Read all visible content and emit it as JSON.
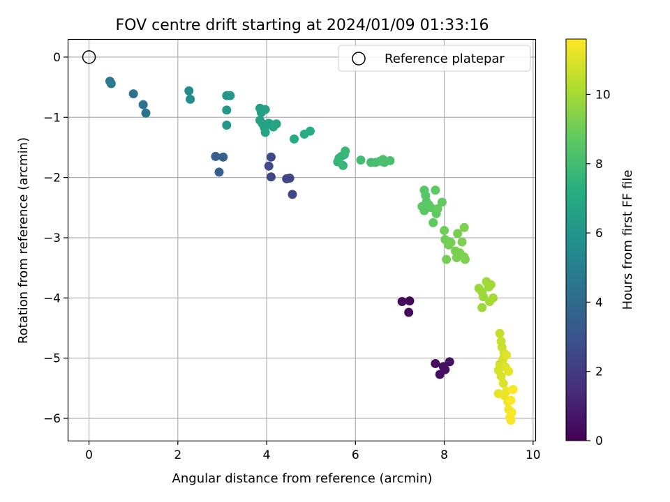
{
  "chart_data": {
    "type": "scatter",
    "title": "FOV centre drift starting at 2024/01/09 01:33:16",
    "xlabel": "Angular distance from reference (arcmin)",
    "ylabel": "Rotation from reference (arcmin)",
    "xlim": [
      -0.48,
      10.05
    ],
    "ylim": [
      -6.37,
      0.3
    ],
    "xticks": [
      "0",
      "2",
      "4",
      "6",
      "8",
      "10"
    ],
    "yticks": [
      "0",
      "−1",
      "−2",
      "−3",
      "−4",
      "−5",
      "−6"
    ],
    "grid": true,
    "legend": {
      "position": "top-right",
      "entries": [
        "Reference platepar"
      ]
    },
    "reference_point": {
      "x": 0,
      "y": 0,
      "label": "Reference platepar"
    },
    "colorbar": {
      "label": "Hours from first FF file",
      "min": 0,
      "max": 11.6,
      "ticks": [
        "0",
        "2",
        "4",
        "6",
        "8",
        "10"
      ],
      "colormap": "viridis"
    },
    "points": [
      {
        "x": 7.05,
        "y": -4.06,
        "h": 0.2
      },
      {
        "x": 7.22,
        "y": -4.05,
        "h": 0.25
      },
      {
        "x": 7.2,
        "y": -4.24,
        "h": 0.3
      },
      {
        "x": 7.8,
        "y": -5.09,
        "h": 0.35
      },
      {
        "x": 7.9,
        "y": -5.27,
        "h": 0.4
      },
      {
        "x": 7.98,
        "y": -5.14,
        "h": 0.45
      },
      {
        "x": 8.02,
        "y": -5.19,
        "h": 0.5
      },
      {
        "x": 8.12,
        "y": -5.06,
        "h": 0.55
      },
      {
        "x": 4.45,
        "y": -2.02,
        "h": 2.4
      },
      {
        "x": 4.52,
        "y": -2.01,
        "h": 2.45
      },
      {
        "x": 4.58,
        "y": -2.28,
        "h": 2.5
      },
      {
        "x": 4.1,
        "y": -1.99,
        "h": 2.55
      },
      {
        "x": 4.1,
        "y": -1.66,
        "h": 2.6
      },
      {
        "x": 4.05,
        "y": -1.81,
        "h": 2.7
      },
      {
        "x": 2.85,
        "y": -1.65,
        "h": 3.5
      },
      {
        "x": 3.02,
        "y": -1.66,
        "h": 3.55
      },
      {
        "x": 2.93,
        "y": -1.91,
        "h": 3.6
      },
      {
        "x": 1.0,
        "y": -0.61,
        "h": 4.3
      },
      {
        "x": 1.22,
        "y": -0.79,
        "h": 4.35
      },
      {
        "x": 1.28,
        "y": -0.93,
        "h": 4.4
      },
      {
        "x": 0.47,
        "y": -0.4,
        "h": 4.7
      },
      {
        "x": 0.5,
        "y": -0.44,
        "h": 4.75
      },
      {
        "x": 2.25,
        "y": -0.56,
        "h": 5.5
      },
      {
        "x": 2.28,
        "y": -0.7,
        "h": 5.55
      },
      {
        "x": 3.1,
        "y": -0.64,
        "h": 6.1
      },
      {
        "x": 3.18,
        "y": -0.64,
        "h": 6.12
      },
      {
        "x": 3.1,
        "y": -0.88,
        "h": 6.15
      },
      {
        "x": 3.1,
        "y": -1.13,
        "h": 6.2
      },
      {
        "x": 3.85,
        "y": -0.85,
        "h": 6.5
      },
      {
        "x": 3.88,
        "y": -0.92,
        "h": 6.52
      },
      {
        "x": 3.92,
        "y": -0.88,
        "h": 6.55
      },
      {
        "x": 3.97,
        "y": -0.87,
        "h": 6.58
      },
      {
        "x": 3.85,
        "y": -1.05,
        "h": 6.6
      },
      {
        "x": 3.9,
        "y": -1.1,
        "h": 6.62
      },
      {
        "x": 3.95,
        "y": -1.17,
        "h": 6.65
      },
      {
        "x": 3.97,
        "y": -1.25,
        "h": 6.68
      },
      {
        "x": 4.05,
        "y": -1.1,
        "h": 6.7
      },
      {
        "x": 4.1,
        "y": -1.12,
        "h": 6.72
      },
      {
        "x": 4.15,
        "y": -1.16,
        "h": 6.75
      },
      {
        "x": 4.22,
        "y": -1.11,
        "h": 6.78
      },
      {
        "x": 4.62,
        "y": -1.36,
        "h": 7.1
      },
      {
        "x": 4.85,
        "y": -1.28,
        "h": 7.15
      },
      {
        "x": 4.98,
        "y": -1.23,
        "h": 7.2
      },
      {
        "x": 5.6,
        "y": -1.74,
        "h": 7.6
      },
      {
        "x": 5.63,
        "y": -1.68,
        "h": 7.62
      },
      {
        "x": 5.68,
        "y": -1.65,
        "h": 7.65
      },
      {
        "x": 5.72,
        "y": -1.8,
        "h": 7.68
      },
      {
        "x": 5.75,
        "y": -1.62,
        "h": 7.7
      },
      {
        "x": 5.77,
        "y": -1.56,
        "h": 7.72
      },
      {
        "x": 6.12,
        "y": -1.71,
        "h": 8.0
      },
      {
        "x": 6.35,
        "y": -1.75,
        "h": 8.05
      },
      {
        "x": 6.45,
        "y": -1.75,
        "h": 8.1
      },
      {
        "x": 6.55,
        "y": -1.73,
        "h": 8.12
      },
      {
        "x": 6.62,
        "y": -1.7,
        "h": 8.15
      },
      {
        "x": 6.65,
        "y": -1.75,
        "h": 8.18
      },
      {
        "x": 6.78,
        "y": -1.72,
        "h": 8.2
      },
      {
        "x": 7.55,
        "y": -2.21,
        "h": 8.5
      },
      {
        "x": 7.58,
        "y": -2.3,
        "h": 8.52
      },
      {
        "x": 7.6,
        "y": -2.4,
        "h": 8.55
      },
      {
        "x": 7.5,
        "y": -2.48,
        "h": 8.58
      },
      {
        "x": 7.55,
        "y": -2.55,
        "h": 8.6
      },
      {
        "x": 7.65,
        "y": -2.45,
        "h": 8.62
      },
      {
        "x": 7.7,
        "y": -2.5,
        "h": 8.65
      },
      {
        "x": 7.8,
        "y": -2.21,
        "h": 8.68
      },
      {
        "x": 7.82,
        "y": -2.6,
        "h": 8.7
      },
      {
        "x": 7.75,
        "y": -2.75,
        "h": 8.72
      },
      {
        "x": 7.85,
        "y": -2.52,
        "h": 8.75
      },
      {
        "x": 7.95,
        "y": -2.41,
        "h": 8.78
      },
      {
        "x": 8.0,
        "y": -2.88,
        "h": 9.0
      },
      {
        "x": 8.02,
        "y": -3.03,
        "h": 9.02
      },
      {
        "x": 8.08,
        "y": -3.06,
        "h": 9.05
      },
      {
        "x": 8.1,
        "y": -3.12,
        "h": 9.08
      },
      {
        "x": 8.05,
        "y": -3.36,
        "h": 9.1
      },
      {
        "x": 8.15,
        "y": -3.08,
        "h": 9.12
      },
      {
        "x": 8.3,
        "y": -2.93,
        "h": 9.15
      },
      {
        "x": 8.25,
        "y": -3.22,
        "h": 9.18
      },
      {
        "x": 8.28,
        "y": -3.33,
        "h": 9.2
      },
      {
        "x": 8.35,
        "y": -3.25,
        "h": 9.22
      },
      {
        "x": 8.4,
        "y": -3.07,
        "h": 9.25
      },
      {
        "x": 8.45,
        "y": -2.83,
        "h": 9.28
      },
      {
        "x": 8.45,
        "y": -3.32,
        "h": 9.3
      },
      {
        "x": 8.47,
        "y": -3.36,
        "h": 9.32
      },
      {
        "x": 8.78,
        "y": -3.84,
        "h": 9.8
      },
      {
        "x": 8.85,
        "y": -3.9,
        "h": 9.82
      },
      {
        "x": 8.88,
        "y": -3.98,
        "h": 9.85
      },
      {
        "x": 8.85,
        "y": -4.16,
        "h": 9.88
      },
      {
        "x": 8.95,
        "y": -3.73,
        "h": 9.9
      },
      {
        "x": 9.0,
        "y": -3.82,
        "h": 9.92
      },
      {
        "x": 9.05,
        "y": -3.78,
        "h": 9.95
      },
      {
        "x": 9.02,
        "y": -4.06,
        "h": 9.98
      },
      {
        "x": 9.1,
        "y": -4.0,
        "h": 10.0
      },
      {
        "x": 9.25,
        "y": -4.59,
        "h": 10.6
      },
      {
        "x": 9.28,
        "y": -4.72,
        "h": 10.65
      },
      {
        "x": 9.3,
        "y": -4.82,
        "h": 10.7
      },
      {
        "x": 9.35,
        "y": -4.92,
        "h": 10.75
      },
      {
        "x": 9.32,
        "y": -5.02,
        "h": 10.8
      },
      {
        "x": 9.25,
        "y": -5.1,
        "h": 10.85
      },
      {
        "x": 9.22,
        "y": -5.2,
        "h": 10.9
      },
      {
        "x": 9.28,
        "y": -5.3,
        "h": 10.95
      },
      {
        "x": 9.33,
        "y": -5.42,
        "h": 11.0
      },
      {
        "x": 9.4,
        "y": -4.95,
        "h": 11.05
      },
      {
        "x": 9.38,
        "y": -5.15,
        "h": 11.1
      },
      {
        "x": 9.45,
        "y": -5.22,
        "h": 11.15
      },
      {
        "x": 9.22,
        "y": -5.59,
        "h": 11.2
      },
      {
        "x": 9.35,
        "y": -5.62,
        "h": 11.25
      },
      {
        "x": 9.4,
        "y": -5.55,
        "h": 11.3
      },
      {
        "x": 9.43,
        "y": -5.72,
        "h": 11.35
      },
      {
        "x": 9.45,
        "y": -5.85,
        "h": 11.4
      },
      {
        "x": 9.48,
        "y": -5.98,
        "h": 11.45
      },
      {
        "x": 9.5,
        "y": -6.03,
        "h": 11.5
      },
      {
        "x": 9.52,
        "y": -5.9,
        "h": 11.52
      },
      {
        "x": 9.55,
        "y": -5.52,
        "h": 11.55
      },
      {
        "x": 9.5,
        "y": -5.7,
        "h": 11.58
      }
    ]
  }
}
